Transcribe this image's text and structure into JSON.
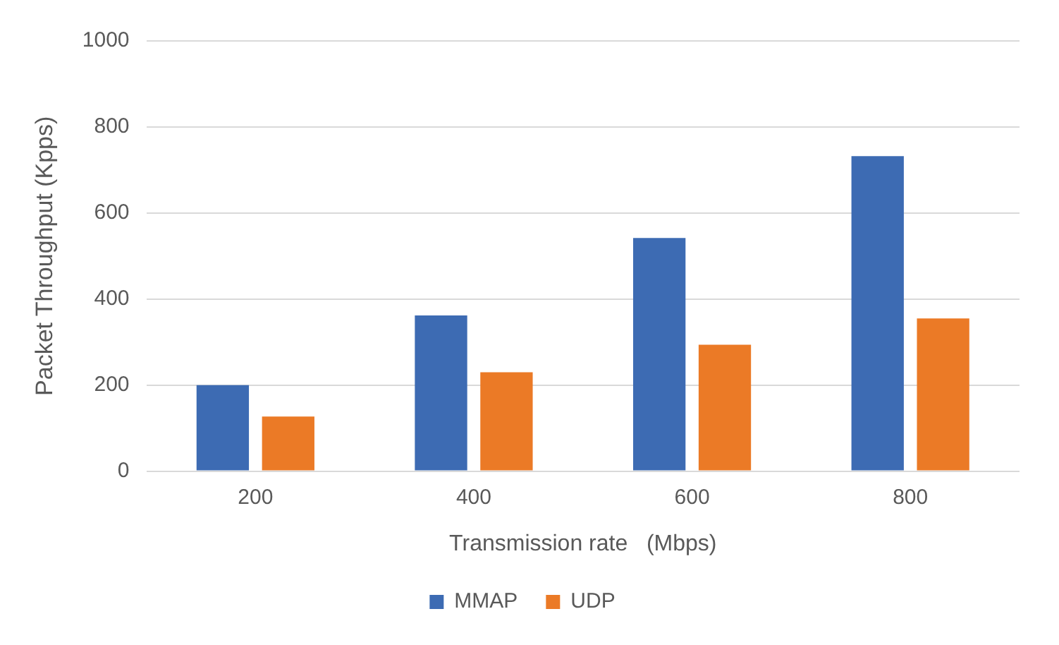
{
  "chart_data": {
    "type": "bar",
    "xlabel": "Transmission rate   (Mbps)",
    "ylabel": "Packet Throughput (Kpps)",
    "categories": [
      "200",
      "400",
      "600",
      "800"
    ],
    "series": [
      {
        "name": "MMAP",
        "color": "#3d6bb3",
        "values": [
          200,
          362,
          542,
          732
        ]
      },
      {
        "name": "UDP",
        "color": "#eb7a26",
        "values": [
          127,
          230,
          294,
          355
        ]
      }
    ],
    "ylim": [
      0,
      1000
    ],
    "yticks": [
      0,
      200,
      400,
      600,
      800,
      1000
    ],
    "grid": "y",
    "legend": "bottom"
  }
}
